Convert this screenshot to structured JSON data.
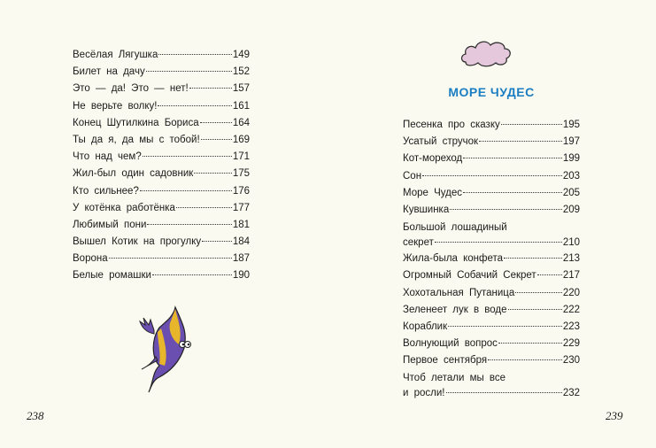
{
  "left_page": {
    "page_number": "238",
    "entries": [
      {
        "title": "Весёлая Лягушка",
        "page": "149"
      },
      {
        "title": "Билет на дачу",
        "page": "152"
      },
      {
        "title": "Это — да! Это — нет!",
        "page": "157"
      },
      {
        "title": "Не верьте волку!",
        "page": "161"
      },
      {
        "title": "Конец Шутилкина Бориса",
        "page": "164"
      },
      {
        "title": "Ты да я, да мы с тобой!",
        "page": "169"
      },
      {
        "title": "Что над чем?",
        "page": "171"
      },
      {
        "title": "Жил-был один садовник",
        "page": "175"
      },
      {
        "title": "Кто сильнее?",
        "page": "176"
      },
      {
        "title": "У котёнка работёнка",
        "page": "177"
      },
      {
        "title": "Любимый пони",
        "page": "181"
      },
      {
        "title": "Вышел Котик на прогулку",
        "page": "184"
      },
      {
        "title": "Ворона",
        "page": "187"
      },
      {
        "title": "Белые ромашки",
        "page": "190"
      }
    ]
  },
  "right_page": {
    "page_number": "239",
    "section_title": "МОРЕ ЧУДЕС",
    "entries": [
      {
        "title": "Песенка про сказку",
        "page": "195"
      },
      {
        "title": "Усатый стручок",
        "page": "197"
      },
      {
        "title": "Кот-мореход",
        "page": "199"
      },
      {
        "title": "Сон",
        "page": "203"
      },
      {
        "title": "Море Чудес",
        "page": "205"
      },
      {
        "title": "Кувшинка",
        "page": "209"
      },
      {
        "title_line1": "Большой лошадиный",
        "title": "секрет",
        "page": "210"
      },
      {
        "title": "Жила-была конфета",
        "page": "213"
      },
      {
        "title": "Огромный Собачий Секрет",
        "page": "217"
      },
      {
        "title": "Хохотальная Путаница",
        "page": "220"
      },
      {
        "title": "Зеленеет лук в воде",
        "page": "222"
      },
      {
        "title": "Кораблик",
        "page": "223"
      },
      {
        "title": "Волнующий вопрос",
        "page": "229"
      },
      {
        "title": "Первое сентября",
        "page": "230"
      },
      {
        "title_line1": "Чтоб летали мы все",
        "title": "и росли!",
        "page": "232"
      }
    ]
  },
  "colors": {
    "title": "#1b7ec2",
    "background": "#fbfaf0",
    "cloud": "#e6c8dc",
    "fish_purple": "#6a4fb0",
    "fish_yellow": "#e8b62a"
  }
}
